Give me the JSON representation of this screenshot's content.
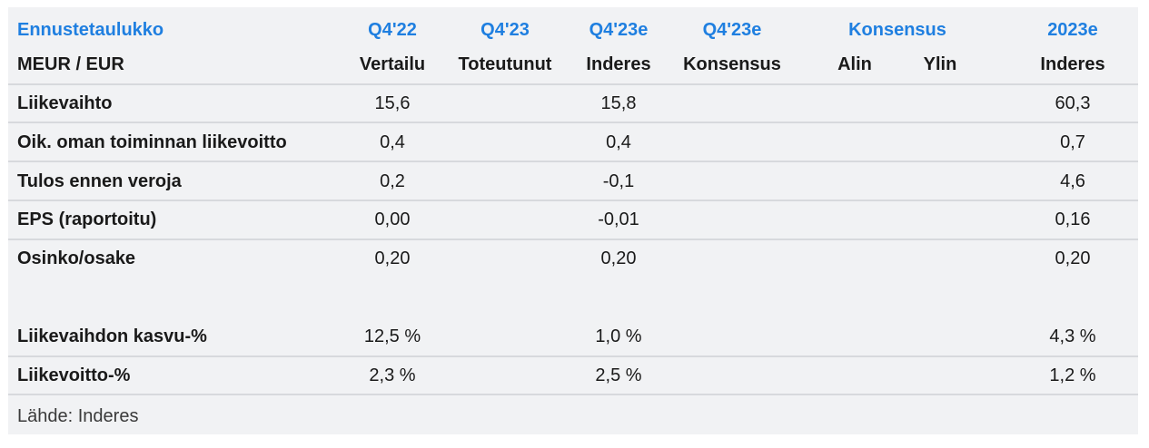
{
  "header": {
    "row1": {
      "label": "Ennustetaulukko",
      "c1": "Q4'22",
      "c2": "Q4'23",
      "c3": "Q4'23e",
      "c4": "Q4'23e",
      "c5": "Konsensus",
      "c7": "2023e"
    },
    "row2": {
      "label": "MEUR / EUR",
      "c1": "Vertailu",
      "c2": "Toteutunut",
      "c3": "Inderes",
      "c4": "Konsensus",
      "c5": "Alin",
      "c6": "Ylin",
      "c7": "Inderes"
    }
  },
  "rows": [
    {
      "label": "Liikevaihto",
      "q422": "15,6",
      "q423": "",
      "q423e_inderes": "15,8",
      "q423e_consensus": "",
      "low": "",
      "high": "",
      "y2023e": "60,3"
    },
    {
      "label": "Oik. oman toiminnan liikevoitto",
      "q422": "0,4",
      "q423": "",
      "q423e_inderes": "0,4",
      "q423e_consensus": "",
      "low": "",
      "high": "",
      "y2023e": "0,7"
    },
    {
      "label": "Tulos ennen veroja",
      "q422": "0,2",
      "q423": "",
      "q423e_inderes": "-0,1",
      "q423e_consensus": "",
      "low": "",
      "high": "",
      "y2023e": "4,6"
    },
    {
      "label": "EPS (raportoitu)",
      "q422": "0,00",
      "q423": "",
      "q423e_inderes": "-0,01",
      "q423e_consensus": "",
      "low": "",
      "high": "",
      "y2023e": "0,16"
    },
    {
      "label": "Osinko/osake",
      "q422": "0,20",
      "q423": "",
      "q423e_inderes": "0,20",
      "q423e_consensus": "",
      "low": "",
      "high": "",
      "y2023e": "0,20"
    },
    {
      "label": "Liikevaihdon kasvu-%",
      "q422": "12,5 %",
      "q423": "",
      "q423e_inderes": "1,0 %",
      "q423e_consensus": "",
      "low": "",
      "high": "",
      "y2023e": "4,3 %"
    },
    {
      "label": "Liikevoitto-%",
      "q422": "2,3 %",
      "q423": "",
      "q423e_inderes": "2,5 %",
      "q423e_consensus": "",
      "low": "",
      "high": "",
      "y2023e": "1,2 %"
    }
  ],
  "source": "Lähde: Inderes",
  "colors": {
    "header_accent": "#1f7fe0",
    "panel_background": "#f1f2f4",
    "divider": "#d7d9dd"
  }
}
